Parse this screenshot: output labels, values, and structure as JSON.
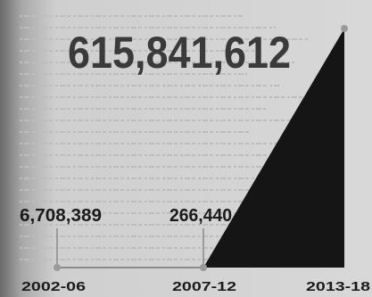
{
  "chart_data": {
    "type": "area",
    "x": [
      "2002-06",
      "2007-12",
      "2013-18"
    ],
    "y": [
      6708389,
      266440,
      615841612
    ],
    "data_labels": [
      "6,708,389",
      "266,440",
      "615,841,612"
    ],
    "colors": {
      "fill": "#151515",
      "line": "#8a8a8a",
      "marker": "#9a9a9a",
      "text": "#1a1a1a",
      "big_text": "#3a3a3a",
      "background": "#d6d6d6"
    }
  }
}
